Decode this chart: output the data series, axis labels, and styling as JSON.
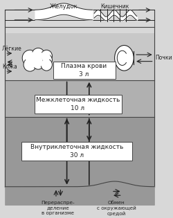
{
  "plasma_label": "Плазма крови\n3 л",
  "interstitial_label": "Межклеточная жидкость\n10 л",
  "intracellular_label": "Внутриклеточная жидкость\n30 л",
  "lung_label": "Лёгкие",
  "skin_label": "Кожа",
  "stomach_label": "Желудок",
  "intestine_label": "Кишечник",
  "kidney_label": "Почки",
  "redistrib_label": "Перераспре-\nделение\nв организме",
  "exchange_label": "Обмен\nс окружающей\nсредой",
  "plasma_bg": "#c8c8c8",
  "inter_bg": "#b0b0b0",
  "intra_bg": "#989898",
  "outer_bg": "#d8d8d8",
  "white": "#ffffff",
  "dark": "#222222",
  "border": "#444444"
}
